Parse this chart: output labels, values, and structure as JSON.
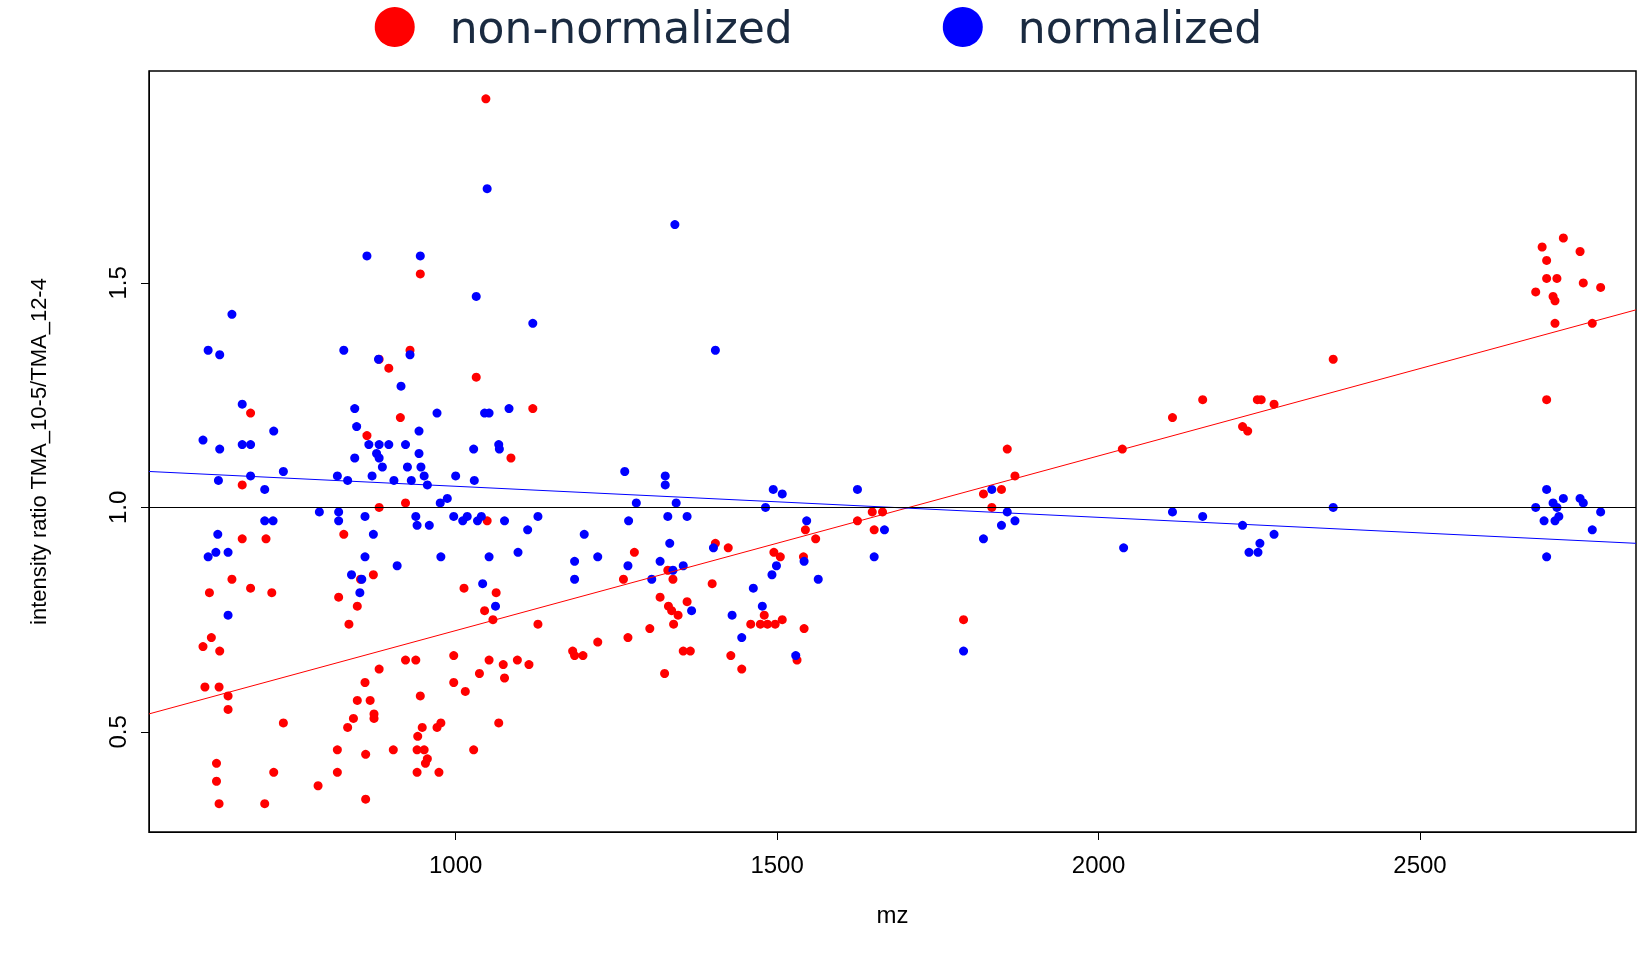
{
  "chart_data": {
    "type": "scatter",
    "xlabel": "mz",
    "ylabel": "intensity ratio TMA_10-5/TMA_12-4",
    "xlim": [
      523,
      2836
    ],
    "ylim": [
      0.277,
      1.972
    ],
    "xticks": [
      1000,
      1500,
      2000,
      2500
    ],
    "yticks": [
      0.5,
      {
        "value": 1.0,
        "label": "1.0"
      },
      1.5
    ],
    "grid": false,
    "legend": "top",
    "marker": "circle",
    "ref_lines": [
      {
        "axis": "y",
        "value": 1.0,
        "color": "#000000"
      }
    ],
    "series": [
      {
        "name": "non-normalized",
        "color": "#ff0000",
        "x": [
          607,
          617,
          620,
          610,
          632,
          633,
          628,
          628,
          632,
          646,
          646,
          652,
          668,
          668,
          681,
          681,
          703,
          705,
          714,
          717,
          732,
          786,
          818,
          816,
          816,
          826,
          832,
          834,
          841,
          847,
          847,
          852,
          859,
          860,
          860,
          862,
          867,
          872,
          873,
          873,
          881,
          881,
          881,
          896,
          903,
          914,
          922,
          922,
          929,
          938,
          940,
          940,
          941,
          945,
          945,
          948,
          951,
          953,
          956,
          971,
          974,
          977,
          997,
          997,
          1015,
          1013,
          1028,
          1032,
          1037,
          1045,
          1049,
          1047,
          1052,
          1058,
          1063,
          1067,
          1074,
          1076,
          1086,
          1096,
          1114,
          1120,
          1128,
          1182,
          1185,
          1198,
          1221,
          1261,
          1268,
          1278,
          1302,
          1318,
          1325,
          1330,
          1331,
          1336,
          1338,
          1339,
          1346,
          1354,
          1360,
          1365,
          1399,
          1404,
          1424,
          1428,
          1445,
          1459,
          1474,
          1480,
          1485,
          1495,
          1497,
          1505,
          1508,
          1531,
          1541,
          1542,
          1544,
          1560,
          1625,
          1648,
          1651,
          1664,
          1790,
          1821,
          1834,
          1849,
          1858,
          1870,
          2037,
          2115,
          2162,
          2224,
          2232,
          2247,
          2253,
          2273,
          2365,
          2680,
          2690,
          2697,
          2697,
          2697,
          2707,
          2710,
          2710,
          2713,
          2723,
          2749,
          2754,
          2768,
          2781
        ],
        "values": [
          0.69,
          0.81,
          0.71,
          0.6,
          0.6,
          0.68,
          0.43,
          0.39,
          0.34,
          0.58,
          0.55,
          0.84,
          1.05,
          0.93,
          1.21,
          0.82,
          0.34,
          0.93,
          0.81,
          0.41,
          0.52,
          0.38,
          0.8,
          0.46,
          0.41,
          0.94,
          0.51,
          0.74,
          0.53,
          0.57,
          0.78,
          0.84,
          0.61,
          0.45,
          0.35,
          1.16,
          0.57,
          0.85,
          0.54,
          0.53,
          0.64,
          1.0,
          1.33,
          1.31,
          0.46,
          1.2,
          1.01,
          0.66,
          1.35,
          0.66,
          0.46,
          0.41,
          0.49,
          0.58,
          1.52,
          0.51,
          0.46,
          0.43,
          0.44,
          0.51,
          0.41,
          0.52,
          0.61,
          0.67,
          0.59,
          0.82,
          0.46,
          1.29,
          0.63,
          0.77,
          0.97,
          1.91,
          0.66,
          0.75,
          0.81,
          0.52,
          0.65,
          0.62,
          1.11,
          0.66,
          0.65,
          1.22,
          0.74,
          0.68,
          0.67,
          0.67,
          0.7,
          0.84,
          0.71,
          0.9,
          0.73,
          0.8,
          0.63,
          0.86,
          0.78,
          0.77,
          0.84,
          0.74,
          0.76,
          0.68,
          0.79,
          0.68,
          0.83,
          0.92,
          0.91,
          0.67,
          0.64,
          0.74,
          0.74,
          0.76,
          0.74,
          0.9,
          0.74,
          0.89,
          0.75,
          0.66,
          0.89,
          0.73,
          0.95,
          0.93,
          0.97,
          0.99,
          0.95,
          0.99,
          0.75,
          1.03,
          1.0,
          1.04,
          1.13,
          1.07,
          1.13,
          1.2,
          1.24,
          1.18,
          1.17,
          1.24,
          1.24,
          1.23,
          1.33,
          1.48,
          1.58,
          1.55,
          1.51,
          1.24,
          1.47,
          1.46,
          1.41,
          1.51,
          1.6,
          1.57,
          1.5,
          1.41,
          1.49
        ]
      },
      {
        "name": "normalized",
        "color": "#0000ff",
        "x": [
          607,
          615,
          615,
          627,
          630,
          633,
          633,
          631,
          646,
          652,
          646,
          668,
          668,
          681,
          681,
          703,
          703,
          716,
          717,
          732,
          788,
          816,
          818,
          818,
          826,
          832,
          838,
          843,
          843,
          846,
          851,
          854,
          859,
          859,
          862,
          865,
          870,
          872,
          877,
          880,
          881,
          881,
          886,
          896,
          904,
          909,
          915,
          922,
          925,
          929,
          931,
          938,
          940,
          943,
          943,
          945,
          946,
          951,
          956,
          959,
          971,
          976,
          977,
          987,
          997,
          1000,
          1011,
          1018,
          1028,
          1029,
          1032,
          1034,
          1040,
          1042,
          1045,
          1049,
          1052,
          1052,
          1062,
          1067,
          1068,
          1076,
          1083,
          1097,
          1112,
          1120,
          1128,
          1185,
          1185,
          1200,
          1221,
          1263,
          1268,
          1269,
          1281,
          1305,
          1318,
          1326,
          1326,
          1330,
          1333,
          1338,
          1341,
          1343,
          1354,
          1360,
          1367,
          1401,
          1404,
          1430,
          1445,
          1463,
          1477,
          1482,
          1492,
          1494,
          1499,
          1508,
          1529,
          1542,
          1546,
          1564,
          1625,
          1651,
          1667,
          1790,
          1821,
          1834,
          1849,
          1858,
          1870,
          2039,
          2115,
          2162,
          2224,
          2234,
          2248,
          2251,
          2273,
          2365,
          2680,
          2693,
          2697,
          2697,
          2707,
          2710,
          2713,
          2716,
          2723,
          2749,
          2754,
          2768,
          2781
        ],
        "values": [
          1.15,
          1.35,
          0.89,
          0.9,
          0.94,
          1.34,
          1.13,
          1.06,
          0.9,
          1.43,
          0.76,
          1.14,
          1.23,
          1.14,
          1.07,
          1.04,
          0.97,
          0.97,
          1.17,
          1.08,
          0.99,
          1.07,
          0.99,
          0.97,
          1.35,
          1.06,
          0.85,
          1.11,
          1.22,
          1.18,
          0.81,
          0.84,
          0.98,
          0.89,
          1.56,
          1.14,
          1.07,
          0.94,
          1.12,
          1.33,
          1.14,
          1.11,
          1.09,
          1.14,
          1.06,
          0.87,
          1.27,
          1.14,
          1.09,
          1.34,
          1.06,
          0.98,
          0.96,
          1.12,
          1.17,
          1.56,
          1.09,
          1.07,
          1.05,
          0.96,
          1.21,
          1.01,
          0.89,
          1.02,
          0.98,
          1.07,
          0.97,
          0.98,
          1.13,
          1.06,
          1.47,
          0.97,
          0.98,
          0.83,
          1.21,
          1.71,
          1.21,
          0.89,
          0.78,
          1.14,
          1.13,
          0.97,
          1.22,
          0.9,
          0.95,
          1.41,
          0.98,
          0.88,
          0.84,
          0.94,
          0.89,
          1.08,
          0.87,
          0.97,
          1.01,
          0.84,
          0.88,
          1.07,
          1.05,
          0.98,
          0.92,
          0.86,
          1.63,
          1.01,
          0.87,
          0.98,
          0.77,
          0.91,
          1.35,
          0.76,
          0.71,
          0.82,
          0.78,
          1.0,
          0.85,
          1.04,
          0.87,
          1.03,
          0.67,
          0.88,
          0.97,
          0.84,
          1.04,
          0.89,
          0.95,
          0.68,
          0.93,
          1.04,
          0.96,
          0.99,
          0.97,
          0.91,
          0.99,
          0.98,
          0.96,
          0.9,
          0.9,
          0.92,
          0.94,
          1.0,
          1.0,
          0.97,
          1.04,
          0.89,
          1.01,
          0.97,
          1.0,
          0.98,
          1.02,
          1.02,
          1.01,
          0.95,
          0.99
        ]
      },
      {
        "type": "line",
        "color": "#ff0000",
        "x": [
          523,
          2836
        ],
        "values": [
          0.54,
          1.44
        ],
        "marker": "none"
      },
      {
        "type": "line",
        "color": "#0000ff",
        "x": [
          523,
          2836
        ],
        "values": [
          1.08,
          0.92
        ],
        "marker": "none"
      }
    ]
  }
}
